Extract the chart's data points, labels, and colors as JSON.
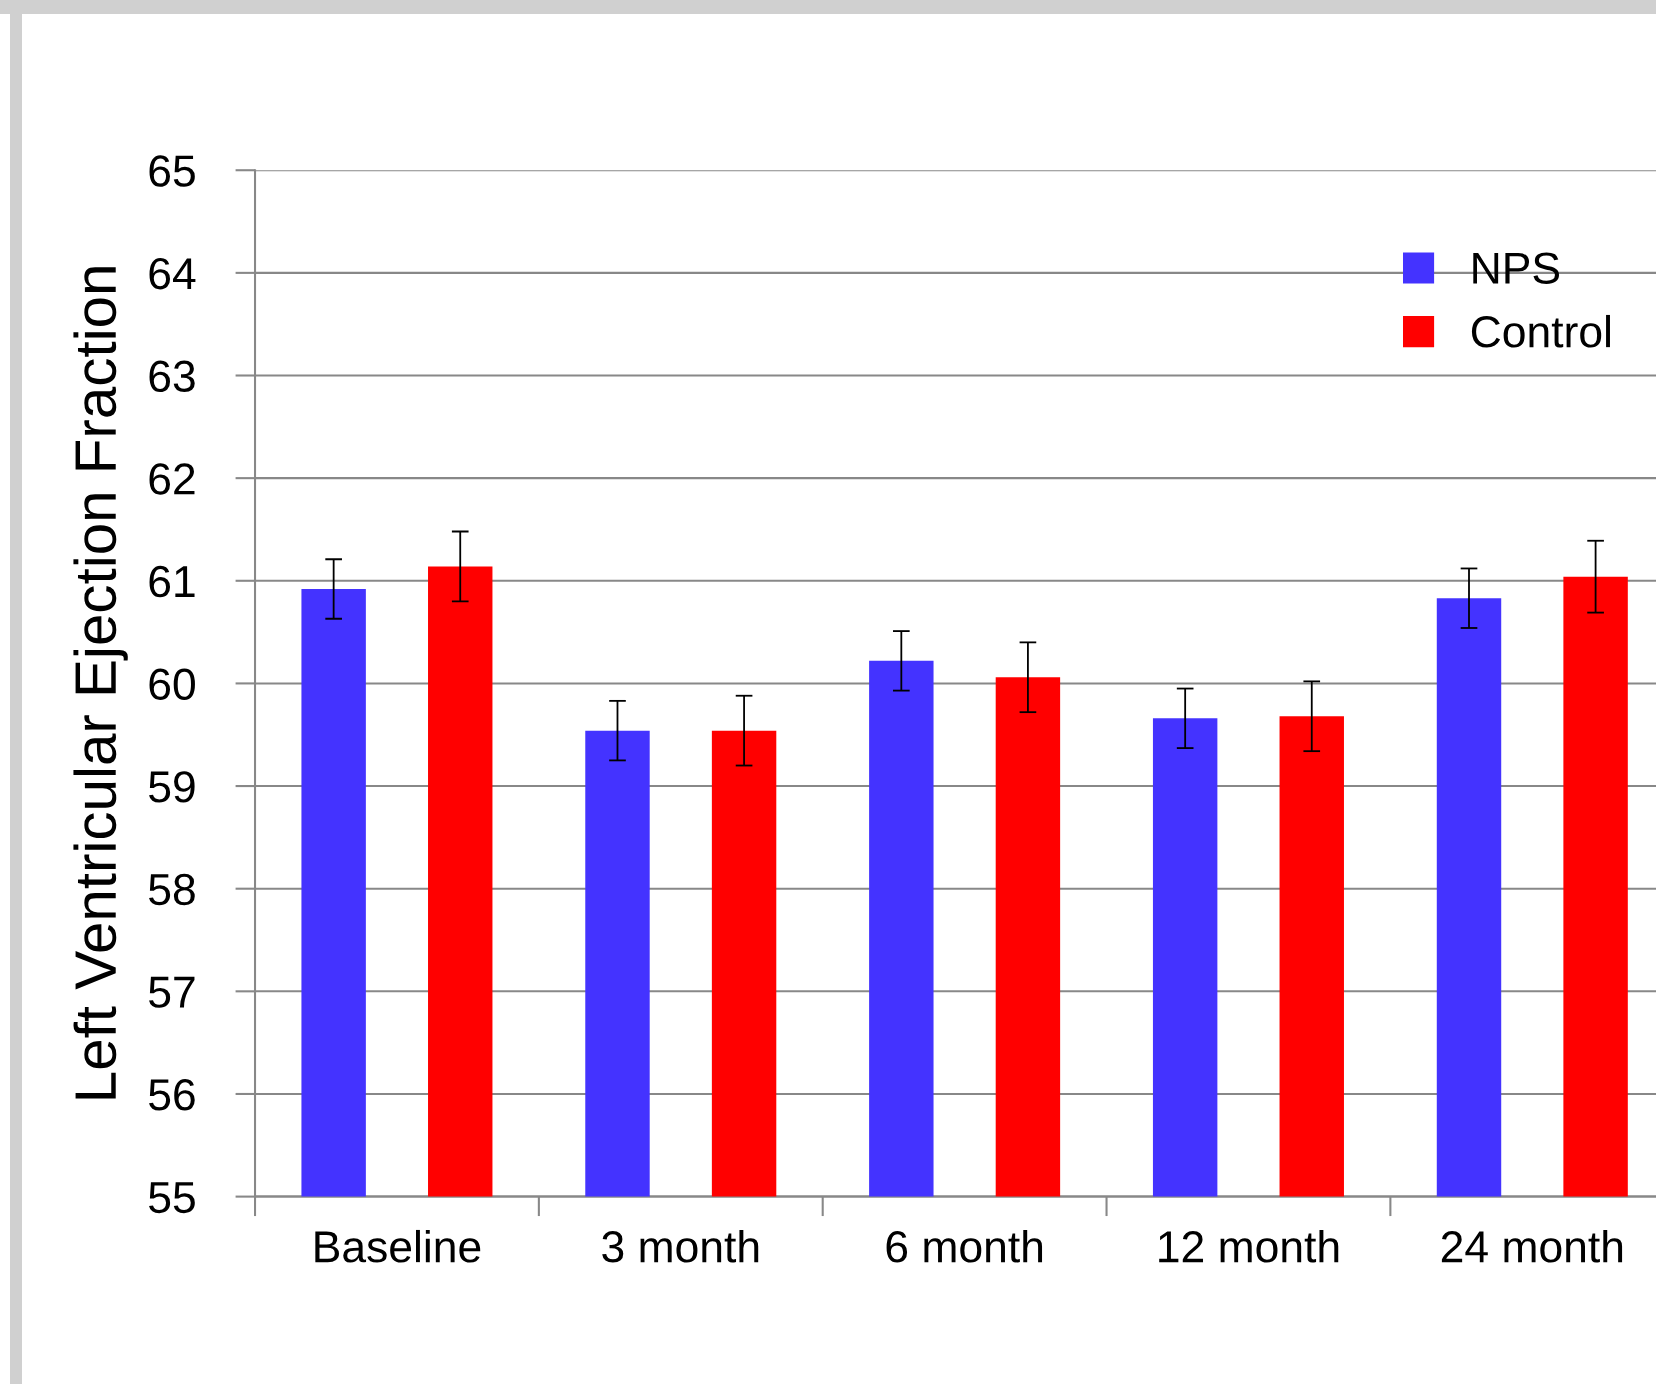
{
  "chart_data": {
    "type": "bar",
    "ylabel": "Left Ventricular Ejection Fraction",
    "categories": [
      "Baseline",
      "3 month",
      "6 month",
      "12 month",
      "24 month"
    ],
    "series": [
      {
        "name": "NPS",
        "color": "#4433ff",
        "values": [
          60.92,
          59.54,
          60.22,
          59.66,
          60.83
        ],
        "errors": [
          0.29,
          0.29,
          0.29,
          0.29,
          0.29
        ]
      },
      {
        "name": "Control",
        "color": "#ff0000",
        "values": [
          61.14,
          59.54,
          60.06,
          59.68,
          61.04
        ],
        "errors": [
          0.34,
          0.34,
          0.34,
          0.34,
          0.35
        ]
      }
    ],
    "ylim": [
      55,
      65
    ],
    "yticks": [
      55,
      56,
      57,
      58,
      59,
      60,
      61,
      62,
      63,
      64,
      65
    ],
    "grid": "y",
    "legend": "top right"
  }
}
